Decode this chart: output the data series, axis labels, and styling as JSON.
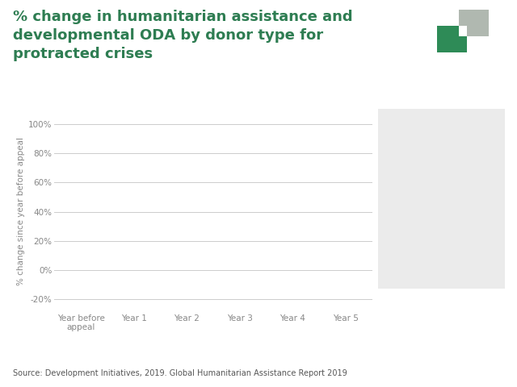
{
  "title_line1": "% change in humanitarian assistance and",
  "title_line2": "developmental ODA by donor type for",
  "title_line3": "protracted crises",
  "title_color": "#2e7d52",
  "title_fontsize": 13,
  "title_fontweight": "bold",
  "ylabel": "% change since year before appeal",
  "ylabel_fontsize": 7.5,
  "ylabel_color": "#888888",
  "source_text": "Source: Development Initiatives, 2019. Global Humanitarian Assistance Report 2019",
  "source_fontsize": 7,
  "source_color": "#555555",
  "x_labels": [
    "Year before\nappeal",
    "Year 1",
    "Year 2",
    "Year 3",
    "Year 4",
    "Year 5"
  ],
  "yticks": [
    -20,
    0,
    20,
    40,
    60,
    80,
    100
  ],
  "ytick_labels": [
    "-20%",
    "0%",
    "20%",
    "40%",
    "60%",
    "80%",
    "100%"
  ],
  "ylim": [
    -27,
    108
  ],
  "background_color": "#ffffff",
  "plot_area_color": "#ffffff",
  "grid_color": "#cccccc",
  "legend_box_color": "#ebebeb",
  "logo_green": "#2e8b57",
  "logo_gray": "#b0b8b0"
}
